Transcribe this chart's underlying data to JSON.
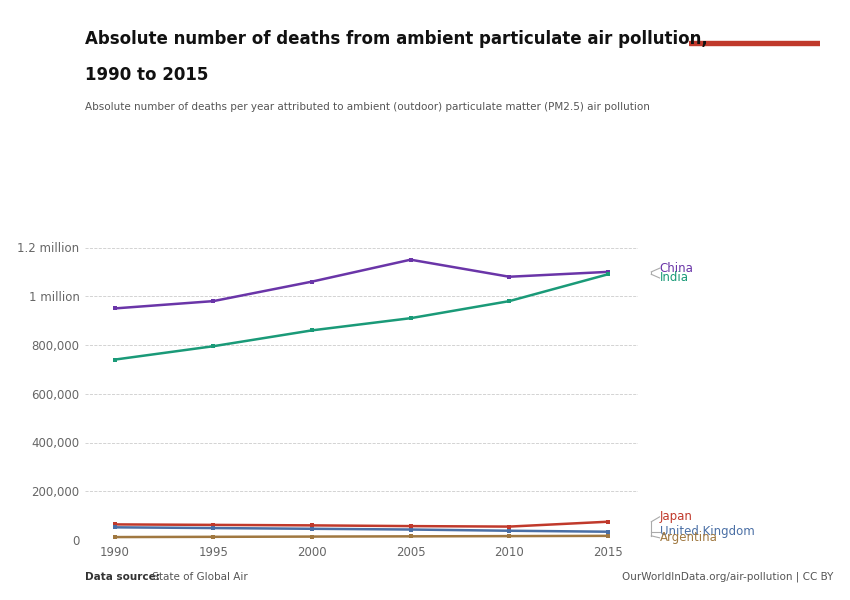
{
  "title_line1": "Absolute number of deaths from ambient particulate air pollution,",
  "title_line2": "1990 to 2015",
  "subtitle": "Absolute number of deaths per year attributed to ambient (outdoor) particulate matter (PM2.5) air pollution",
  "source_bold": "Data source:",
  "source_rest": " State of Global Air",
  "credit": "OurWorldInData.org/air-pollution | CC BY",
  "years": [
    1990,
    1995,
    2000,
    2005,
    2010,
    2015
  ],
  "series": {
    "China": {
      "values": [
        950000,
        980000,
        1060000,
        1150000,
        1080000,
        1100000
      ],
      "color": "#6A35A8"
    },
    "India": {
      "values": [
        740000,
        795000,
        860000,
        910000,
        980000,
        1090000
      ],
      "color": "#1A9A78"
    },
    "Japan": {
      "values": [
        64000,
        62000,
        60000,
        57000,
        55000,
        75000
      ],
      "color": "#C0392B"
    },
    "United Kingdom": {
      "values": [
        52000,
        49000,
        46000,
        43000,
        38000,
        34000
      ],
      "color": "#4A6FA5"
    },
    "Argentina": {
      "values": [
        12000,
        13000,
        14000,
        15000,
        16000,
        17000
      ],
      "color": "#A07840"
    }
  },
  "ylim": [
    0,
    1280000
  ],
  "yticks": [
    0,
    200000,
    400000,
    600000,
    800000,
    1000000,
    1200000
  ],
  "ytick_labels": [
    "0",
    "200,000",
    "400,000",
    "600,000",
    "800,000",
    "1 million",
    "1.2 million"
  ],
  "background_color": "#FFFFFF",
  "grid_color": "#CCCCCC",
  "tick_color": "#666666"
}
